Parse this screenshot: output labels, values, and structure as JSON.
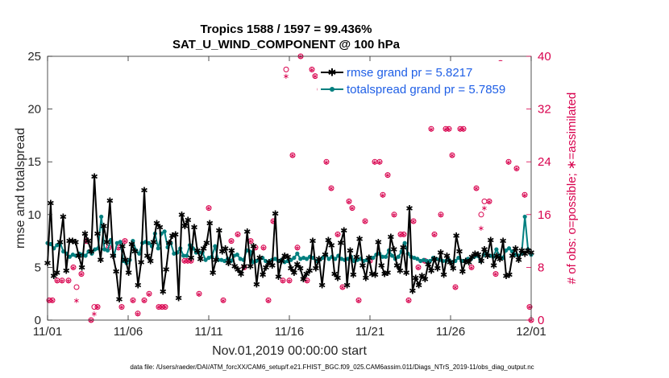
{
  "chart_data": {
    "type": "line",
    "title": "Tropics 1588 / 1597 = 99.436%",
    "subtitle": "SAT_U_WIND_COMPONENT @ 100 hPa",
    "xlabel": "Nov.01,2019 00:00:00 start",
    "ylabel": "rmse and totalspread",
    "ylabel_right": "# of obs: o=possible; ∗=assimilated",
    "footnote": "data file: /Users/raeder/DAI/ATM_forcXX/CAM6_setup/f.e21.FHIST_BGC.f09_025.CAM6assim.011/Diags_NTrS_2019-11/obs_diag_output.nc",
    "x_tick_labels": [
      "11/01",
      "11/06",
      "11/11",
      "11/16",
      "11/21",
      "11/26",
      "12/01"
    ],
    "x_tick_days": [
      0,
      5,
      10,
      15,
      20,
      25,
      30
    ],
    "xlim": [
      0,
      30
    ],
    "ylim": [
      0,
      25
    ],
    "y_ticks": [
      0,
      5,
      10,
      15,
      20,
      25
    ],
    "ylim_right": [
      0,
      40
    ],
    "y_ticks_right": [
      0,
      8,
      16,
      24,
      32,
      40
    ],
    "colors": {
      "rmse": "#000000",
      "totalspread": "#007f7f",
      "obs": "#d8004d",
      "legend_text": "#1f5fe6",
      "axis_right": "#d8004d"
    },
    "series": [
      {
        "name": "rmse grand pr = 5.8217",
        "values": [
          5.4,
          11.1,
          4.2,
          4.5,
          7.4,
          9.8,
          4.7,
          7.5,
          7.5,
          7.4,
          6.1,
          5.0,
          8.2,
          7.5,
          6.5,
          13.6,
          8.2,
          5.7,
          8.9,
          7.4,
          11.3,
          6.1,
          4.6,
          2.0,
          7.0,
          5.7,
          4.5,
          7.2,
          6.5,
          3.3,
          5.5,
          12.3,
          6.1,
          5.6,
          7.4,
          9.2,
          8.8,
          2.7,
          4.8,
          7.3,
          8.0,
          8.1,
          2.1,
          10.0,
          8.9,
          9.5,
          5.9,
          8.8,
          6.6,
          5.8,
          6.8,
          7.3,
          9.2,
          4.5,
          5.7,
          8.5,
          6.5,
          6.8,
          5.4,
          6.6,
          5.1,
          4.8,
          4.4,
          5.1,
          8.4,
          5.1,
          7.0,
          3.4,
          5.9,
          4.3,
          5.0,
          5.5,
          5.2,
          10.1,
          4.1,
          5.6,
          6.1,
          6.0,
          4.9,
          4.5,
          5.3,
          4.9,
          3.9,
          4.4,
          4.7,
          7.5,
          4.9,
          5.8,
          3.3,
          6.2,
          7.6,
          7.1,
          4.4,
          4.0,
          7.3,
          8.5,
          3.3,
          6.6,
          4.3,
          6.0,
          7.7,
          5.2,
          4.0,
          5.9,
          4.4,
          4.3,
          7.4,
          5.2,
          4.4,
          4.5,
          7.9,
          6.7,
          5.2,
          4.7,
          6.9,
          4.5,
          10.6,
          2.8,
          4.0,
          3.3,
          4.2,
          3.9,
          5.3,
          4.7,
          5.8,
          4.9,
          6.4,
          4.3,
          6.1,
          5.5,
          4.9,
          8.0,
          6.5,
          4.6,
          5.6,
          5.5,
          6.0,
          6.3,
          6.2,
          5.6,
          6.7,
          6.1,
          7.6,
          5.2,
          6.1,
          5.8,
          7.5,
          4.2,
          4.3,
          6.1,
          6.8,
          5.7,
          6.6,
          6.3,
          6.6,
          6.4
        ]
      },
      {
        "name": "totalspread grand pr = 5.7859",
        "values": [
          7.3,
          7.2,
          6.8,
          7.1,
          7.3,
          6.5,
          6.3,
          6.0,
          6.2,
          6.1,
          6.3,
          6.2,
          6.1,
          6.5,
          6.3,
          6.7,
          6.8,
          9.8,
          6.7,
          6.6,
          7.6,
          6.1,
          7.3,
          7.4,
          5.6,
          5.4,
          5.7,
          7.5,
          6.6,
          6.3,
          7.3,
          7.4,
          7.3,
          7.0,
          8.2,
          6.8,
          8.2,
          8.4,
          6.9,
          7.3,
          6.3,
          6.4,
          6.8,
          6.1,
          6.1,
          7.1,
          6.8,
          6.4,
          6.4,
          6.4,
          5.7,
          5.9,
          6.0,
          7.0,
          5.7,
          5.7,
          5.6,
          5.8,
          5.6,
          6.1,
          6.2,
          5.8,
          5.7,
          6.6,
          6.5,
          5.5,
          5.6,
          5.7,
          5.9,
          5.6,
          5.5,
          5.7,
          5.8,
          5.6,
          5.7,
          5.5,
          5.6,
          5.7,
          5.9,
          6.3,
          5.8,
          5.9,
          5.8,
          6.0,
          5.9,
          5.6,
          5.7,
          5.9,
          6.2,
          5.8,
          6.0,
          5.8,
          6.1,
          5.8,
          5.7,
          5.8,
          6.0,
          5.6,
          5.7,
          5.8,
          5.6,
          5.7,
          5.9,
          5.9,
          6.2,
          6.3,
          6.0,
          6.0,
          6.6,
          6.1,
          5.8,
          6.0,
          6.5,
          7.3,
          6.3,
          6.0,
          5.9,
          5.8,
          5.6,
          5.7,
          5.6,
          5.6,
          5.9,
          5.8,
          5.7,
          5.6,
          5.6,
          5.7,
          5.5,
          5.6,
          5.9,
          5.6,
          5.6,
          5.8,
          5.8,
          6.0,
          6.1,
          5.6,
          6.2,
          6.3,
          6.1,
          6.0,
          6.7,
          6.1,
          5.9,
          6.6,
          6.8,
          6.5,
          6.2,
          6.1,
          6.3,
          9.8,
          6.7,
          6.2
        ]
      }
    ],
    "obs_possible": {
      "name": "possible",
      "points": [
        [
          0.1,
          3
        ],
        [
          0.3,
          3
        ],
        [
          0.6,
          6
        ],
        [
          0.9,
          6
        ],
        [
          1.3,
          6
        ],
        [
          1.6,
          8
        ],
        [
          1.8,
          5
        ],
        [
          2.1,
          7
        ],
        [
          2.4,
          12
        ],
        [
          2.7,
          0
        ],
        [
          2.9,
          2
        ],
        [
          3.1,
          2
        ],
        [
          3.8,
          11
        ],
        [
          4.4,
          11
        ],
        [
          4.6,
          2
        ],
        [
          4.8,
          12
        ],
        [
          5.3,
          3
        ],
        [
          5.6,
          1
        ],
        [
          6.0,
          3
        ],
        [
          6.3,
          4
        ],
        [
          6.9,
          2
        ],
        [
          7.1,
          2
        ],
        [
          7.3,
          2
        ],
        [
          8.5,
          9
        ],
        [
          8.7,
          9
        ],
        [
          8.9,
          9
        ],
        [
          9.4,
          4
        ],
        [
          10.0,
          17
        ],
        [
          10.9,
          3
        ],
        [
          11.4,
          12
        ],
        [
          11.8,
          13
        ],
        [
          12.2,
          8
        ],
        [
          12.6,
          12
        ],
        [
          12.9,
          11
        ],
        [
          13.4,
          11
        ],
        [
          13.7,
          3
        ],
        [
          14.0,
          15
        ],
        [
          14.6,
          6
        ],
        [
          14.8,
          38
        ],
        [
          15.0,
          6
        ],
        [
          15.2,
          25
        ],
        [
          15.5,
          11
        ],
        [
          15.7,
          40
        ],
        [
          16.1,
          6
        ],
        [
          16.4,
          38
        ],
        [
          16.6,
          37
        ],
        [
          16.9,
          35
        ],
        [
          17.1,
          36
        ],
        [
          17.3,
          24
        ],
        [
          17.6,
          20
        ],
        [
          18.0,
          13
        ],
        [
          18.3,
          5
        ],
        [
          18.7,
          18
        ],
        [
          18.9,
          17
        ],
        [
          19.3,
          3
        ],
        [
          19.7,
          15
        ],
        [
          20.0,
          9
        ],
        [
          20.3,
          24
        ],
        [
          20.6,
          24
        ],
        [
          20.8,
          19
        ],
        [
          21.1,
          22
        ],
        [
          21.5,
          16
        ],
        [
          21.9,
          13
        ],
        [
          22.1,
          13
        ],
        [
          22.4,
          3
        ],
        [
          22.7,
          15
        ],
        [
          23.0,
          8
        ],
        [
          23.4,
          9
        ],
        [
          23.8,
          29
        ],
        [
          24.0,
          13
        ],
        [
          24.4,
          16
        ],
        [
          24.7,
          29
        ],
        [
          24.9,
          29
        ],
        [
          25.1,
          25
        ],
        [
          25.3,
          5
        ],
        [
          25.6,
          29
        ],
        [
          25.8,
          29
        ],
        [
          26.3,
          8
        ],
        [
          26.6,
          20
        ],
        [
          26.9,
          16
        ],
        [
          27.1,
          18
        ],
        [
          27.4,
          18
        ],
        [
          27.8,
          7
        ],
        [
          28.1,
          39
        ],
        [
          28.4,
          36
        ],
        [
          28.6,
          24
        ],
        [
          29.1,
          23
        ],
        [
          29.6,
          19
        ],
        [
          29.9,
          2
        ],
        [
          30.0,
          0
        ]
      ]
    },
    "obs_assimilated": {
      "name": "assimilated",
      "points": [
        [
          0.1,
          3
        ],
        [
          0.3,
          3
        ],
        [
          0.6,
          6
        ],
        [
          0.9,
          6
        ],
        [
          1.3,
          6
        ],
        [
          1.6,
          8
        ],
        [
          1.8,
          3
        ],
        [
          2.1,
          7
        ],
        [
          2.4,
          12
        ],
        [
          2.7,
          0
        ],
        [
          2.9,
          1
        ],
        [
          3.1,
          2
        ],
        [
          3.8,
          11
        ],
        [
          4.4,
          11
        ],
        [
          4.6,
          2
        ],
        [
          4.8,
          12
        ],
        [
          5.3,
          3
        ],
        [
          5.6,
          1
        ],
        [
          6.0,
          3
        ],
        [
          6.3,
          4
        ],
        [
          6.9,
          2
        ],
        [
          7.1,
          2
        ],
        [
          7.3,
          2
        ],
        [
          8.5,
          9
        ],
        [
          8.7,
          9
        ],
        [
          8.9,
          9
        ],
        [
          9.4,
          4
        ],
        [
          10.0,
          17
        ],
        [
          10.9,
          3
        ],
        [
          11.4,
          12
        ],
        [
          11.8,
          13
        ],
        [
          12.2,
          8
        ],
        [
          12.6,
          12
        ],
        [
          12.9,
          11
        ],
        [
          13.4,
          11
        ],
        [
          13.7,
          3
        ],
        [
          14.0,
          15
        ],
        [
          14.6,
          6
        ],
        [
          14.8,
          37
        ],
        [
          15.0,
          6
        ],
        [
          15.2,
          25
        ],
        [
          15.5,
          11
        ],
        [
          15.7,
          40
        ],
        [
          16.1,
          6
        ],
        [
          16.4,
          38
        ],
        [
          16.6,
          37
        ],
        [
          16.9,
          35
        ],
        [
          17.1,
          36
        ],
        [
          17.3,
          24
        ],
        [
          17.6,
          20
        ],
        [
          18.0,
          13
        ],
        [
          18.3,
          5
        ],
        [
          18.7,
          18
        ],
        [
          18.9,
          17
        ],
        [
          19.3,
          3
        ],
        [
          19.7,
          15
        ],
        [
          20.0,
          9
        ],
        [
          20.3,
          24
        ],
        [
          20.6,
          24
        ],
        [
          20.8,
          19
        ],
        [
          21.1,
          22
        ],
        [
          21.5,
          16
        ],
        [
          21.9,
          13
        ],
        [
          22.1,
          13
        ],
        [
          22.4,
          3
        ],
        [
          22.7,
          15
        ],
        [
          23.0,
          8
        ],
        [
          23.4,
          9
        ],
        [
          23.8,
          29
        ],
        [
          24.0,
          13
        ],
        [
          24.4,
          16
        ],
        [
          24.7,
          29
        ],
        [
          24.9,
          29
        ],
        [
          25.1,
          25
        ],
        [
          25.3,
          5
        ],
        [
          25.6,
          29
        ],
        [
          25.8,
          29
        ],
        [
          26.3,
          8
        ],
        [
          26.6,
          20
        ],
        [
          26.9,
          14
        ],
        [
          27.1,
          17
        ],
        [
          27.4,
          18
        ],
        [
          27.8,
          7
        ],
        [
          28.1,
          39
        ],
        [
          28.4,
          36
        ],
        [
          28.6,
          24
        ],
        [
          29.1,
          23
        ],
        [
          29.6,
          19
        ],
        [
          29.9,
          2
        ],
        [
          30.0,
          0
        ]
      ]
    },
    "legend": {
      "position": "top-right",
      "entries": [
        "rmse grand pr = 5.8217",
        "totalspread grand pr = 5.7859"
      ]
    }
  }
}
